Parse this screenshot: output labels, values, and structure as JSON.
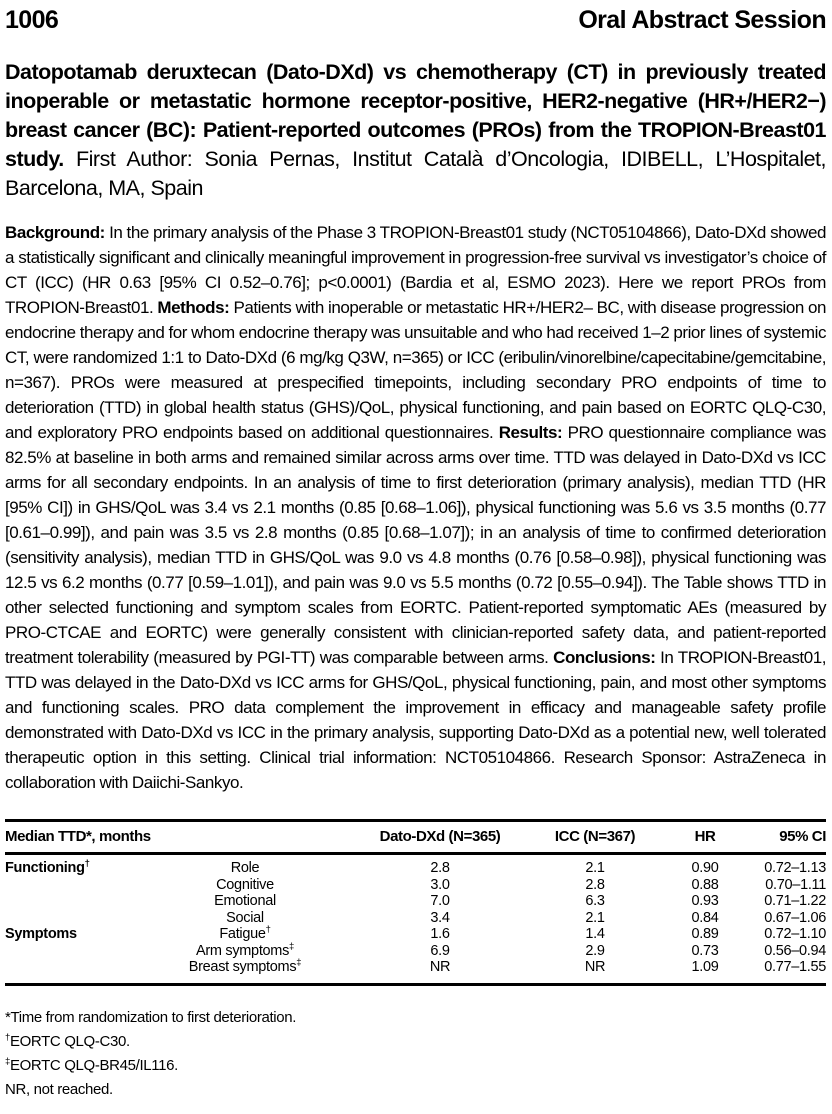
{
  "page": {
    "abstract_number": "1006",
    "session_title": "Oral Abstract Session"
  },
  "title": {
    "main": "Datopotamab deruxtecan (Dato-DXd) vs chemotherapy (CT) in previously treated inoperable or metastatic hormone receptor-positive, HER2-negative (HR+/HER2−) breast cancer (BC): Patient-reported outcomes (PROs) from the TROPION-Breast01 study.",
    "author_info": "First Author: Sonia Pernas, Institut Català d’Oncologia, IDIBELL, L’Hospitalet, Barcelona, MA, Spain"
  },
  "abstract": {
    "sections": [
      {
        "label": "Background:",
        "text": "In the primary analysis of the Phase 3 TROPION-Breast01 study (NCT05104866), Dato-DXd showed a statistically significant and clinically meaningful improvement in progression-free survival vs investigator’s choice of CT (ICC) (HR 0.63 [95% CI 0.52–0.76]; p<0.0001) (Bardia et al, ESMO 2023). Here we report PROs from TROPION-Breast01."
      },
      {
        "label": "Methods:",
        "text": "Patients with inoperable or metastatic HR+/HER2– BC, with disease progression on endocrine therapy and for whom endocrine therapy was unsuitable and who had received 1–2 prior lines of systemic CT, were randomized 1:1 to Dato-DXd (6 mg/kg Q3W, n=365) or ICC (eribulin/vinorelbine/capecitabine/gemcitabine, n=367). PROs were measured at prespecified timepoints, including secondary PRO endpoints of time to deterioration (TTD) in global health status (GHS)/QoL, physical functioning, and pain based on EORTC QLQ-C30, and exploratory PRO endpoints based on additional questionnaires."
      },
      {
        "label": "Results:",
        "text": "PRO questionnaire compliance was 82.5% at baseline in both arms and remained similar across arms over time. TTD was delayed in Dato-DXd vs ICC arms for all secondary endpoints. In an analysis of time to first deterioration (primary analysis), median TTD (HR [95% CI]) in GHS/QoL was 3.4 vs 2.1 months (0.85 [0.68–1.06]), physical functioning was 5.6 vs 3.5 months (0.77 [0.61–0.99]), and pain was 3.5 vs 2.8 months (0.85 [0.68–1.07]); in an analysis of time to confirmed deterioration (sensitivity analysis), median TTD in GHS/QoL was 9.0 vs 4.8 months (0.76 [0.58–0.98]), physical functioning was 12.5 vs 6.2 months (0.77 [0.59–1.01]), and pain was 9.0 vs 5.5 months (0.72 [0.55–0.94]). The Table shows TTD in other selected functioning and symptom scales from EORTC. Patient-reported symptomatic AEs (measured by PRO-CTCAE and EORTC) were generally consistent with clinician-reported safety data, and patient-reported treatment tolerability (measured by PGI-TT) was comparable between arms."
      },
      {
        "label": "Conclusions:",
        "text": "In TROPION-Breast01, TTD was delayed in the Dato-DXd vs ICC arms for GHS/QoL, physical functioning, pain, and most other symptoms and functioning scales. PRO data complement the improvement in efficacy and manageable safety profile demonstrated with Dato-DXd vs ICC in the primary analysis, supporting Dato-DXd as a potential new, well tolerated therapeutic option in this setting. Clinical trial information: NCT05104866.  Research Sponsor: AstraZeneca in collaboration with Daiichi-Sankyo."
      }
    ]
  },
  "chart_data": {
    "type": "table",
    "title": "Median TTD*, months",
    "columns": [
      "Median TTD*, months",
      "",
      "Dato-DXd (N=365)",
      "ICC (N=367)",
      "HR",
      "95% CI"
    ],
    "rows": [
      [
        "Functioning†",
        "Role",
        "2.8",
        "2.1",
        "0.90",
        "0.72–1.13"
      ],
      [
        "",
        "Cognitive",
        "3.0",
        "2.8",
        "0.88",
        "0.70–1.11"
      ],
      [
        "",
        "Emotional",
        "7.0",
        "6.3",
        "0.93",
        "0.71–1.22"
      ],
      [
        "",
        "Social",
        "3.4",
        "2.1",
        "0.84",
        "0.67–1.06"
      ],
      [
        "Symptoms",
        "Fatigue†",
        "1.6",
        "1.4",
        "0.89",
        "0.72–1.10"
      ],
      [
        "",
        "Arm symptoms‡",
        "6.9",
        "2.9",
        "0.73",
        "0.56–0.94"
      ],
      [
        "",
        "Breast symptoms‡",
        "NR",
        "NR",
        "1.09",
        "0.77–1.55"
      ]
    ]
  },
  "table": {
    "headers": {
      "label": "Median TTD*, months",
      "dato": "Dato-DXd (N=365)",
      "icc": "ICC (N=367)",
      "hr": "HR",
      "ci": "95% CI"
    },
    "rows": [
      {
        "group": "Functioning",
        "group_sup": "†",
        "scale": "Role",
        "scale_sup": "",
        "dato": "2.8",
        "icc": "2.1",
        "hr": "0.90",
        "ci": "0.72–1.13"
      },
      {
        "group": "",
        "group_sup": "",
        "scale": "Cognitive",
        "scale_sup": "",
        "dato": "3.0",
        "icc": "2.8",
        "hr": "0.88",
        "ci": "0.70–1.11"
      },
      {
        "group": "",
        "group_sup": "",
        "scale": "Emotional",
        "scale_sup": "",
        "dato": "7.0",
        "icc": "6.3",
        "hr": "0.93",
        "ci": "0.71–1.22"
      },
      {
        "group": "",
        "group_sup": "",
        "scale": "Social",
        "scale_sup": "",
        "dato": "3.4",
        "icc": "2.1",
        "hr": "0.84",
        "ci": "0.67–1.06"
      },
      {
        "group": "Symptoms",
        "group_sup": "",
        "scale": "Fatigue",
        "scale_sup": "†",
        "dato": "1.6",
        "icc": "1.4",
        "hr": "0.89",
        "ci": "0.72–1.10"
      },
      {
        "group": "",
        "group_sup": "",
        "scale": "Arm symptoms",
        "scale_sup": "‡",
        "dato": "6.9",
        "icc": "2.9",
        "hr": "0.73",
        "ci": "0.56–0.94"
      },
      {
        "group": "",
        "group_sup": "",
        "scale": "Breast symptoms",
        "scale_sup": "‡",
        "dato": "NR",
        "icc": "NR",
        "hr": "1.09",
        "ci": "0.77–1.55"
      }
    ]
  },
  "footnotes": [
    {
      "sup": "",
      "text": "*Time from randomization to first deterioration."
    },
    {
      "sup": "†",
      "text": "EORTC QLQ-C30."
    },
    {
      "sup": "‡",
      "text": "EORTC QLQ-BR45/IL116."
    },
    {
      "sup": "",
      "text": "NR, not reached."
    }
  ]
}
